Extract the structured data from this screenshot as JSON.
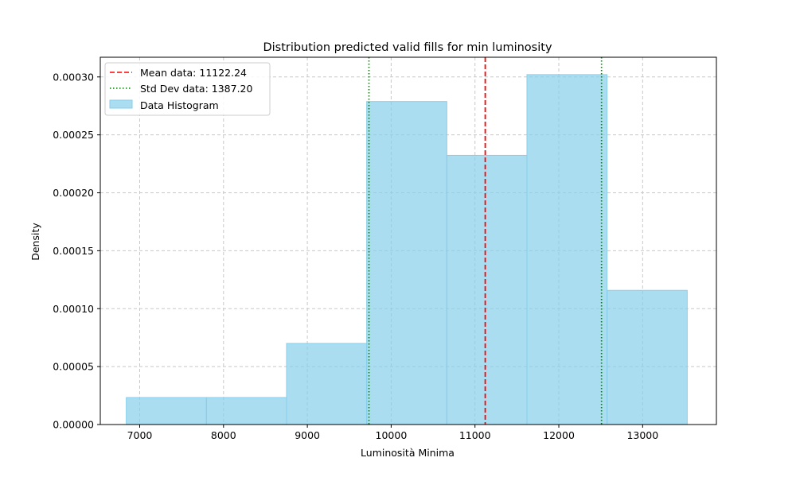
{
  "chart_data": {
    "type": "bar",
    "title": "Distribution predicted valid fills for min luminosity",
    "xlabel": "Luminosità Minima",
    "ylabel": "Density",
    "xlim": [
      6530,
      13880
    ],
    "ylim": [
      0,
      0.000317
    ],
    "x_ticks": [
      7000,
      8000,
      9000,
      10000,
      11000,
      12000,
      13000
    ],
    "y_ticks": [
      0,
      5e-05,
      0.0001,
      0.00015,
      0.0002,
      0.00025,
      0.0003
    ],
    "x_tick_labels": [
      "7000",
      "8000",
      "9000",
      "10000",
      "11000",
      "12000",
      "13000"
    ],
    "y_tick_labels": [
      "0.00000",
      "0.00005",
      "0.00010",
      "0.00015",
      "0.00020",
      "0.00025",
      "0.00030"
    ],
    "grid": true,
    "legend_position": "top-left",
    "series": [
      {
        "name": "Data Histogram",
        "kind": "histogram",
        "color": "#87ceeb",
        "edge_color": "#87ceeb",
        "alpha": 0.7,
        "bin_edges": [
          6840,
          7796,
          8752,
          9708,
          10664,
          11620,
          12576,
          13532
        ],
        "values": [
          2.33e-05,
          2.33e-05,
          7e-05,
          0.0002788,
          0.0002323,
          0.000302,
          0.0001158
        ]
      }
    ],
    "reference_lines": [
      {
        "name": "Mean data: 11122.24",
        "x": 11122.24,
        "color": "#ff0000",
        "style": "dashed"
      },
      {
        "name": "Std Dev data: 1387.20",
        "x": 9735.04,
        "color": "#008000",
        "style": "dotted",
        "show_in_legend": true
      },
      {
        "name": "Std Dev data: 1387.20",
        "x": 12509.44,
        "color": "#008000",
        "style": "dotted",
        "show_in_legend": false
      }
    ],
    "legend": [
      {
        "label": "Mean data: 11122.24",
        "kind": "line",
        "color": "#ff0000",
        "style": "dashed"
      },
      {
        "label": "Std Dev data: 1387.20",
        "kind": "line",
        "color": "#008000",
        "style": "dotted"
      },
      {
        "label": "Data Histogram",
        "kind": "patch",
        "color": "#87ceeb"
      }
    ]
  }
}
